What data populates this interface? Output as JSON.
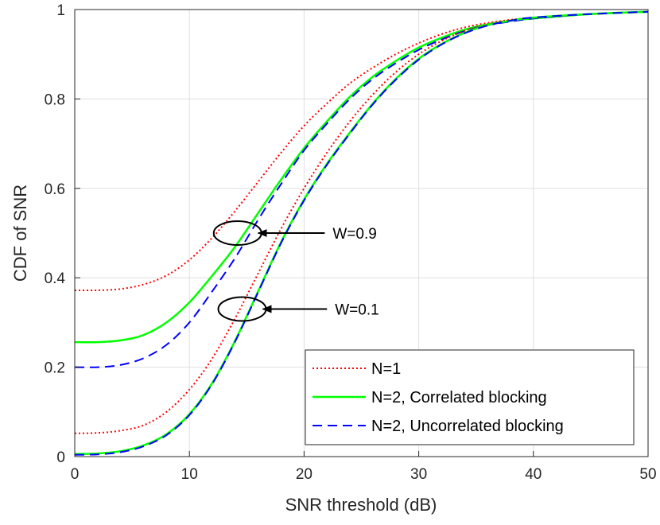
{
  "chart_data": {
    "type": "line",
    "title": "",
    "xlabel": "SNR threshold (dB)",
    "ylabel": "CDF of SNR",
    "xlim": [
      0,
      50
    ],
    "ylim": [
      0,
      1
    ],
    "xticks": [
      0,
      10,
      20,
      30,
      40,
      50
    ],
    "yticks": [
      0,
      0.2,
      0.4,
      0.6,
      0.8,
      1
    ],
    "xtick_labels": [
      "0",
      "10",
      "20",
      "30",
      "40",
      "50"
    ],
    "ytick_labels": [
      "0",
      "0.2",
      "0.4",
      "0.6",
      "0.8",
      "1"
    ],
    "grid": true,
    "legend_position": "bottom-right",
    "legend": [
      "N=1",
      "N=2, Correlated blocking",
      "N=2, Uncorrelated blocking"
    ],
    "series": [
      {
        "name": "N=1",
        "group": "W=0.9",
        "color": "#ff0000",
        "style": "dotted",
        "x": [
          0,
          2,
          4,
          6,
          8,
          10,
          12,
          14,
          16,
          18,
          20,
          22,
          24,
          26,
          28,
          30,
          32,
          34,
          36,
          38,
          40,
          45,
          50
        ],
        "y": [
          0.372,
          0.372,
          0.375,
          0.385,
          0.405,
          0.44,
          0.49,
          0.55,
          0.615,
          0.68,
          0.74,
          0.79,
          0.835,
          0.87,
          0.9,
          0.925,
          0.945,
          0.96,
          0.97,
          0.977,
          0.982,
          0.99,
          0.995
        ]
      },
      {
        "name": "N=2, Correlated blocking",
        "group": "W=0.9",
        "color": "#00ff00",
        "style": "solid",
        "x": [
          0,
          2,
          4,
          6,
          8,
          10,
          12,
          14,
          16,
          18,
          20,
          22,
          24,
          26,
          28,
          30,
          32,
          34,
          36,
          38,
          40,
          45,
          50
        ],
        "y": [
          0.256,
          0.256,
          0.26,
          0.272,
          0.3,
          0.345,
          0.405,
          0.47,
          0.545,
          0.62,
          0.69,
          0.75,
          0.805,
          0.85,
          0.885,
          0.915,
          0.937,
          0.955,
          0.967,
          0.975,
          0.98,
          0.99,
          0.995
        ]
      },
      {
        "name": "N=2, Uncorrelated blocking",
        "group": "W=0.9",
        "color": "#0000ff",
        "style": "dashed",
        "x": [
          0,
          2,
          4,
          6,
          8,
          10,
          12,
          14,
          16,
          18,
          20,
          22,
          24,
          26,
          28,
          30,
          32,
          34,
          36,
          38,
          40,
          45,
          50
        ],
        "y": [
          0.2,
          0.2,
          0.205,
          0.22,
          0.25,
          0.3,
          0.37,
          0.445,
          0.53,
          0.61,
          0.685,
          0.745,
          0.8,
          0.845,
          0.88,
          0.91,
          0.933,
          0.952,
          0.965,
          0.973,
          0.98,
          0.99,
          0.995
        ]
      },
      {
        "name": "N=1",
        "group": "W=0.1",
        "color": "#ff0000",
        "style": "dotted",
        "x": [
          0,
          2,
          4,
          6,
          8,
          10,
          12,
          14,
          16,
          18,
          20,
          22,
          24,
          26,
          28,
          30,
          32,
          34,
          36,
          38,
          40,
          45,
          50
        ],
        "y": [
          0.052,
          0.053,
          0.058,
          0.07,
          0.1,
          0.15,
          0.22,
          0.31,
          0.41,
          0.51,
          0.6,
          0.68,
          0.75,
          0.81,
          0.86,
          0.9,
          0.93,
          0.952,
          0.967,
          0.976,
          0.982,
          0.99,
          0.995
        ]
      },
      {
        "name": "N=2, Correlated blocking",
        "group": "W=0.1",
        "color": "#00ff00",
        "style": "solid",
        "x": [
          0,
          2,
          4,
          6,
          8,
          10,
          12,
          14,
          16,
          18,
          20,
          22,
          24,
          26,
          28,
          30,
          32,
          34,
          36,
          38,
          40,
          45,
          50
        ],
        "y": [
          0.006,
          0.007,
          0.012,
          0.025,
          0.05,
          0.095,
          0.165,
          0.26,
          0.37,
          0.48,
          0.575,
          0.655,
          0.725,
          0.79,
          0.845,
          0.89,
          0.923,
          0.948,
          0.965,
          0.975,
          0.982,
          0.99,
          0.995
        ]
      },
      {
        "name": "N=2, Uncorrelated blocking",
        "group": "W=0.1",
        "color": "#0000ff",
        "style": "dashed",
        "x": [
          0,
          2,
          4,
          6,
          8,
          10,
          12,
          14,
          16,
          18,
          20,
          22,
          24,
          26,
          28,
          30,
          32,
          34,
          36,
          38,
          40,
          45,
          50
        ],
        "y": [
          0.004,
          0.005,
          0.01,
          0.023,
          0.048,
          0.093,
          0.163,
          0.258,
          0.368,
          0.478,
          0.573,
          0.653,
          0.723,
          0.788,
          0.843,
          0.888,
          0.922,
          0.947,
          0.964,
          0.975,
          0.982,
          0.99,
          0.995
        ]
      }
    ],
    "annotations": [
      {
        "text": "W=0.9",
        "ellipse_center": [
          14.2,
          0.5
        ],
        "arrow_from": [
          21.8,
          0.5
        ],
        "arrow_to": [
          16.0,
          0.5
        ]
      },
      {
        "text": "W=0.1",
        "ellipse_center": [
          14.6,
          0.33
        ],
        "arrow_from": [
          22.0,
          0.33
        ],
        "arrow_to": [
          16.4,
          0.33
        ]
      }
    ]
  }
}
